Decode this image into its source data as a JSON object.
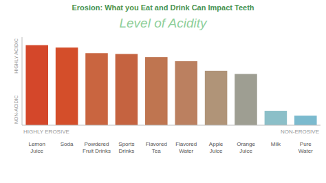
{
  "chart_data": {
    "type": "bar",
    "title": "Erosion: What you Eat and Drink Can Impact Teeth",
    "subtitle": "Level of Acidity",
    "categories": [
      "Lemon\nJuice",
      "Soda",
      "Powdered\nFruit Drinks",
      "Sports\nDrinks",
      "Flavored\nTea",
      "Flavored\nWater",
      "Apple\nJuice",
      "Orange\nJuice",
      "Milk",
      "Pure\nWater"
    ],
    "values": [
      10.0,
      9.7,
      9.0,
      8.9,
      8.5,
      8.0,
      6.8,
      6.4,
      1.8,
      1.2
    ],
    "colors": [
      "#d4472a",
      "#d44e2a",
      "#c96540",
      "#c56340",
      "#bf7550",
      "#bb8060",
      "#b09478",
      "#9e9e92",
      "#8bbfc8",
      "#7bbace"
    ],
    "ylim": [
      0,
      11
    ],
    "tick_labels": "x",
    "annotations": [
      "HIGHLY ACIDIC",
      "NON-ACIDIC",
      "HIGHLY EROSIVE",
      "NON-EROSIVE"
    ]
  }
}
